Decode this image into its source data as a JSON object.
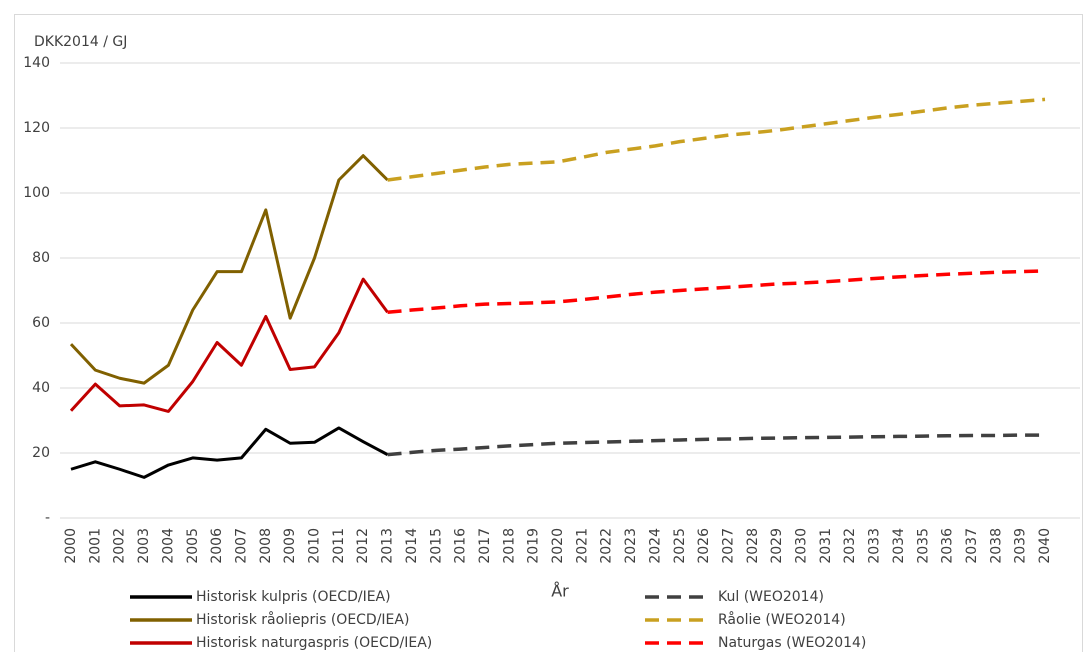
{
  "chart_data": {
    "type": "line",
    "y_label": "DKK2014 / GJ",
    "x_label": "År",
    "categories": [
      "2000",
      "2001",
      "2002",
      "2003",
      "2004",
      "2005",
      "2006",
      "2007",
      "2008",
      "2009",
      "2010",
      "2011",
      "2012",
      "2013",
      "2014",
      "2015",
      "2016",
      "2017",
      "2018",
      "2019",
      "2020",
      "2021",
      "2022",
      "2023",
      "2024",
      "2025",
      "2026",
      "2027",
      "2028",
      "2029",
      "2030",
      "2031",
      "2032",
      "2033",
      "2034",
      "2035",
      "2036",
      "2037",
      "2038",
      "2039",
      "2040"
    ],
    "ylim": [
      0,
      140
    ],
    "yticks": [
      {
        "value": 0,
        "label": "-"
      },
      20,
      40,
      60,
      80,
      100,
      120,
      140
    ],
    "grid": true,
    "series": [
      {
        "name": "Historisk kulpris (OECD/IEA)",
        "color": "#000000",
        "dashed": false,
        "values": [
          15,
          17.3,
          15,
          12.5,
          16.3,
          18.5,
          17.8,
          18.5,
          27.3,
          23,
          23.3,
          27.7,
          23.5,
          19.5,
          null,
          null,
          null,
          null,
          null,
          null,
          null,
          null,
          null,
          null,
          null,
          null,
          null,
          null,
          null,
          null,
          null,
          null,
          null,
          null,
          null,
          null,
          null,
          null,
          null,
          null,
          null
        ]
      },
      {
        "name": "Historisk råoliepris (OECD/IEA)",
        "color": "#806000",
        "dashed": false,
        "values": [
          53.5,
          45.5,
          43,
          41.5,
          47,
          64,
          75.8,
          75.8,
          94.8,
          61.5,
          80,
          104,
          111.5,
          104,
          null,
          null,
          null,
          null,
          null,
          null,
          null,
          null,
          null,
          null,
          null,
          null,
          null,
          null,
          null,
          null,
          null,
          null,
          null,
          null,
          null,
          null,
          null,
          null,
          null,
          null,
          null
        ]
      },
      {
        "name": "Historisk naturgaspris (OECD/IEA)",
        "color": "#c00000",
        "dashed": false,
        "values": [
          33,
          41.2,
          34.5,
          34.8,
          32.8,
          42,
          54,
          47,
          62,
          45.7,
          46.5,
          57,
          73.5,
          63.3,
          null,
          null,
          null,
          null,
          null,
          null,
          null,
          null,
          null,
          null,
          null,
          null,
          null,
          null,
          null,
          null,
          null,
          null,
          null,
          null,
          null,
          null,
          null,
          null,
          null,
          null,
          null
        ]
      },
      {
        "name": "Kul (WEO2014)",
        "color": "#404040",
        "dashed": true,
        "values": [
          null,
          null,
          null,
          null,
          null,
          null,
          null,
          null,
          null,
          null,
          null,
          null,
          null,
          19.5,
          20.2,
          20.8,
          21.2,
          21.7,
          22.2,
          22.6,
          23,
          23.2,
          23.4,
          23.6,
          23.8,
          24,
          24.2,
          24.3,
          24.5,
          24.6,
          24.7,
          24.8,
          24.9,
          25,
          25.1,
          25.2,
          25.3,
          25.4,
          25.4,
          25.5,
          25.5
        ]
      },
      {
        "name": "Råolie (WEO2014)",
        "color": "#c9a020",
        "dashed": true,
        "values": [
          null,
          null,
          null,
          null,
          null,
          null,
          null,
          null,
          null,
          null,
          null,
          null,
          null,
          104,
          105,
          106,
          107,
          108,
          108.8,
          109.2,
          109.6,
          111,
          112.5,
          113.5,
          114.5,
          115.8,
          116.8,
          117.8,
          118.5,
          119.3,
          120.3,
          121.3,
          122.3,
          123.3,
          124.2,
          125.2,
          126.2,
          127,
          127.6,
          128.2,
          128.8
        ]
      },
      {
        "name": "Naturgas (WEO2014)",
        "color": "#ff0000",
        "dashed": true,
        "values": [
          null,
          null,
          null,
          null,
          null,
          null,
          null,
          null,
          null,
          null,
          null,
          null,
          null,
          63.3,
          64,
          64.6,
          65.3,
          65.8,
          66,
          66.2,
          66.5,
          67.2,
          68,
          68.8,
          69.5,
          70,
          70.5,
          71,
          71.5,
          72,
          72.3,
          72.7,
          73.2,
          73.7,
          74.2,
          74.6,
          75,
          75.3,
          75.6,
          75.8,
          76
        ]
      }
    ]
  }
}
